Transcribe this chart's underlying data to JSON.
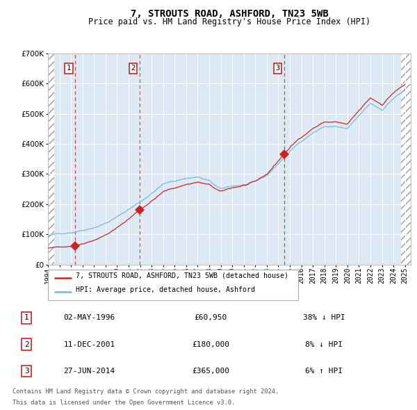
{
  "title": "7, STROUTS ROAD, ASHFORD, TN23 5WB",
  "subtitle": "Price paid vs. HM Land Registry's House Price Index (HPI)",
  "legend_line1": "7, STROUTS ROAD, ASHFORD, TN23 5WB (detached house)",
  "legend_line2": "HPI: Average price, detached house, Ashford",
  "transactions": [
    {
      "num": 1,
      "date": "02-MAY-1996",
      "price": 60950,
      "hpi_rel": "38% ↓ HPI",
      "year": 1996.37
    },
    {
      "num": 2,
      "date": "11-DEC-2001",
      "price": 180000,
      "hpi_rel": "8% ↓ HPI",
      "year": 2001.95
    },
    {
      "num": 3,
      "date": "27-JUN-2014",
      "price": 365000,
      "hpi_rel": "6% ↑ HPI",
      "year": 2014.5
    }
  ],
  "footnote_line1": "Contains HM Land Registry data © Crown copyright and database right 2024.",
  "footnote_line2": "This data is licensed under the Open Government Licence v3.0.",
  "hpi_color": "#7ab8d9",
  "price_color": "#cc2222",
  "marker_color": "#cc2222",
  "bg_color": "#ddeaf5",
  "dashed_color": "#cc2222",
  "ylim": [
    0,
    700000
  ],
  "yticks": [
    0,
    100000,
    200000,
    300000,
    400000,
    500000,
    600000,
    700000
  ],
  "x_start_year": 1994,
  "x_end_year": 2025
}
